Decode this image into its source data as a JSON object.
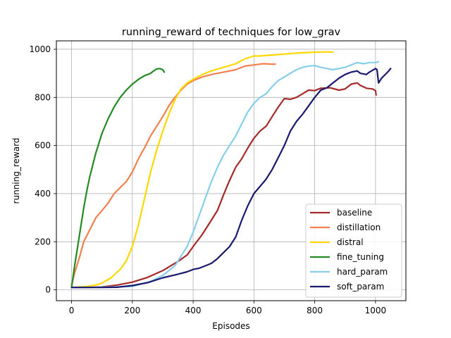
{
  "chart_data": {
    "type": "line",
    "title": "running_reward of techniques for low_grav",
    "xlabel": "Episodes",
    "ylabel": "running_reward",
    "xlim": [
      -50,
      1100
    ],
    "ylim": [
      -45,
      1035
    ],
    "xticks": [
      0,
      200,
      400,
      600,
      800,
      1000
    ],
    "yticks": [
      0,
      200,
      400,
      600,
      800,
      1000
    ],
    "grid": true,
    "legend_position": "lower-right",
    "series": [
      {
        "name": "baseline",
        "color": "#a52a2a",
        "points": [
          [
            0,
            10
          ],
          [
            50,
            10
          ],
          [
            100,
            12
          ],
          [
            150,
            20
          ],
          [
            200,
            32
          ],
          [
            250,
            52
          ],
          [
            300,
            80
          ],
          [
            350,
            118
          ],
          [
            380,
            145
          ],
          [
            400,
            180
          ],
          [
            430,
            230
          ],
          [
            460,
            290
          ],
          [
            480,
            330
          ],
          [
            500,
            395
          ],
          [
            520,
            455
          ],
          [
            540,
            510
          ],
          [
            560,
            545
          ],
          [
            580,
            590
          ],
          [
            600,
            630
          ],
          [
            620,
            660
          ],
          [
            640,
            680
          ],
          [
            660,
            720
          ],
          [
            680,
            760
          ],
          [
            700,
            795
          ],
          [
            720,
            792
          ],
          [
            740,
            800
          ],
          [
            760,
            815
          ],
          [
            780,
            830
          ],
          [
            800,
            828
          ],
          [
            820,
            838
          ],
          [
            850,
            840
          ],
          [
            880,
            830
          ],
          [
            900,
            835
          ],
          [
            920,
            855
          ],
          [
            940,
            860
          ],
          [
            950,
            850
          ],
          [
            970,
            838
          ],
          [
            990,
            835
          ],
          [
            1000,
            828
          ],
          [
            1002,
            810
          ]
        ]
      },
      {
        "name": "distillation",
        "color": "#f4804f",
        "points": [
          [
            0,
            20
          ],
          [
            10,
            70
          ],
          [
            25,
            130
          ],
          [
            40,
            200
          ],
          [
            60,
            250
          ],
          [
            80,
            300
          ],
          [
            100,
            330
          ],
          [
            120,
            360
          ],
          [
            140,
            400
          ],
          [
            160,
            425
          ],
          [
            180,
            450
          ],
          [
            200,
            490
          ],
          [
            220,
            545
          ],
          [
            240,
            590
          ],
          [
            260,
            640
          ],
          [
            280,
            680
          ],
          [
            300,
            720
          ],
          [
            320,
            765
          ],
          [
            340,
            800
          ],
          [
            360,
            830
          ],
          [
            380,
            855
          ],
          [
            400,
            870
          ],
          [
            430,
            885
          ],
          [
            460,
            895
          ],
          [
            500,
            905
          ],
          [
            540,
            915
          ],
          [
            570,
            930
          ],
          [
            600,
            935
          ],
          [
            630,
            940
          ],
          [
            660,
            938
          ],
          [
            670,
            938
          ]
        ]
      },
      {
        "name": "distral",
        "color": "#ffd700",
        "points": [
          [
            0,
            10
          ],
          [
            50,
            14
          ],
          [
            80,
            20
          ],
          [
            100,
            28
          ],
          [
            130,
            50
          ],
          [
            160,
            85
          ],
          [
            180,
            120
          ],
          [
            200,
            180
          ],
          [
            220,
            270
          ],
          [
            240,
            380
          ],
          [
            260,
            490
          ],
          [
            280,
            580
          ],
          [
            300,
            660
          ],
          [
            320,
            730
          ],
          [
            340,
            790
          ],
          [
            360,
            835
          ],
          [
            380,
            860
          ],
          [
            400,
            875
          ],
          [
            430,
            895
          ],
          [
            460,
            910
          ],
          [
            500,
            925
          ],
          [
            540,
            940
          ],
          [
            570,
            960
          ],
          [
            600,
            972
          ],
          [
            620,
            972
          ],
          [
            650,
            975
          ],
          [
            700,
            980
          ],
          [
            750,
            985
          ],
          [
            800,
            988
          ],
          [
            850,
            989
          ],
          [
            860,
            988
          ]
        ]
      },
      {
        "name": "fine_tuning",
        "color": "#228b22",
        "points": [
          [
            0,
            10
          ],
          [
            10,
            100
          ],
          [
            20,
            180
          ],
          [
            30,
            260
          ],
          [
            40,
            340
          ],
          [
            50,
            410
          ],
          [
            60,
            470
          ],
          [
            80,
            570
          ],
          [
            100,
            650
          ],
          [
            120,
            710
          ],
          [
            140,
            760
          ],
          [
            160,
            800
          ],
          [
            180,
            830
          ],
          [
            200,
            855
          ],
          [
            220,
            875
          ],
          [
            240,
            890
          ],
          [
            260,
            900
          ],
          [
            270,
            910
          ],
          [
            280,
            918
          ],
          [
            290,
            920
          ],
          [
            300,
            915
          ],
          [
            305,
            905
          ]
        ]
      },
      {
        "name": "hard_param",
        "color": "#87ceeb",
        "points": [
          [
            0,
            10
          ],
          [
            100,
            11
          ],
          [
            200,
            14
          ],
          [
            260,
            35
          ],
          [
            300,
            60
          ],
          [
            340,
            100
          ],
          [
            360,
            140
          ],
          [
            380,
            180
          ],
          [
            400,
            240
          ],
          [
            420,
            310
          ],
          [
            440,
            380
          ],
          [
            460,
            450
          ],
          [
            480,
            510
          ],
          [
            500,
            560
          ],
          [
            520,
            600
          ],
          [
            540,
            640
          ],
          [
            560,
            690
          ],
          [
            580,
            740
          ],
          [
            600,
            775
          ],
          [
            620,
            800
          ],
          [
            640,
            815
          ],
          [
            660,
            845
          ],
          [
            680,
            870
          ],
          [
            700,
            885
          ],
          [
            720,
            900
          ],
          [
            740,
            915
          ],
          [
            760,
            925
          ],
          [
            780,
            930
          ],
          [
            800,
            932
          ],
          [
            820,
            925
          ],
          [
            840,
            920
          ],
          [
            860,
            915
          ],
          [
            880,
            920
          ],
          [
            900,
            925
          ],
          [
            920,
            935
          ],
          [
            940,
            945
          ],
          [
            960,
            940
          ],
          [
            980,
            945
          ],
          [
            1000,
            945
          ],
          [
            1010,
            948
          ]
        ]
      },
      {
        "name": "soft_param",
        "color": "#191970",
        "points": [
          [
            0,
            10
          ],
          [
            100,
            10
          ],
          [
            150,
            11
          ],
          [
            200,
            18
          ],
          [
            250,
            30
          ],
          [
            300,
            50
          ],
          [
            350,
            65
          ],
          [
            380,
            75
          ],
          [
            400,
            85
          ],
          [
            420,
            90
          ],
          [
            440,
            100
          ],
          [
            460,
            110
          ],
          [
            480,
            130
          ],
          [
            500,
            155
          ],
          [
            520,
            180
          ],
          [
            540,
            220
          ],
          [
            560,
            290
          ],
          [
            580,
            350
          ],
          [
            600,
            400
          ],
          [
            620,
            430
          ],
          [
            640,
            460
          ],
          [
            660,
            500
          ],
          [
            680,
            550
          ],
          [
            700,
            600
          ],
          [
            720,
            660
          ],
          [
            740,
            700
          ],
          [
            760,
            730
          ],
          [
            780,
            765
          ],
          [
            800,
            800
          ],
          [
            820,
            830
          ],
          [
            840,
            840
          ],
          [
            860,
            860
          ],
          [
            880,
            880
          ],
          [
            900,
            895
          ],
          [
            920,
            905
          ],
          [
            940,
            910
          ],
          [
            950,
            900
          ],
          [
            970,
            895
          ],
          [
            980,
            905
          ],
          [
            1000,
            920
          ],
          [
            1005,
            915
          ],
          [
            1010,
            860
          ],
          [
            1020,
            880
          ],
          [
            1040,
            905
          ],
          [
            1050,
            920
          ]
        ]
      }
    ]
  }
}
